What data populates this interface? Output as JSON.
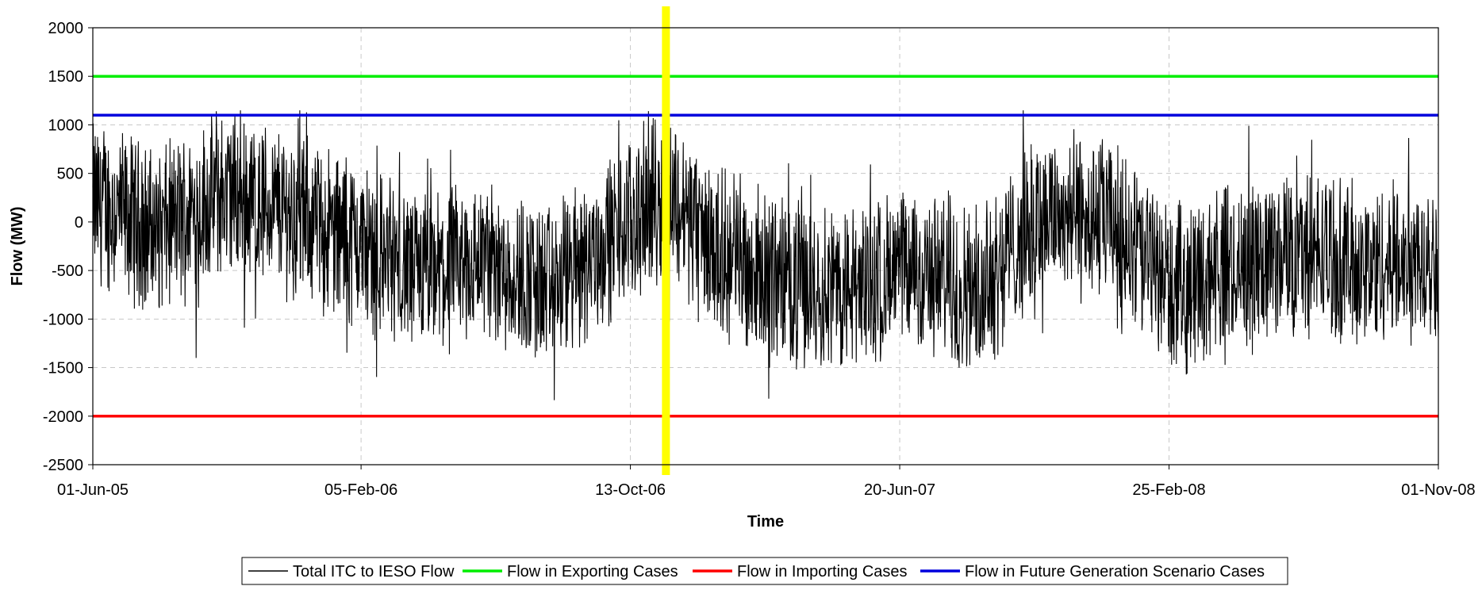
{
  "chart_data": {
    "type": "line",
    "title": "",
    "xlabel": "Time",
    "ylabel": "Flow (MW)",
    "ylim": [
      -2500,
      2000
    ],
    "yticks": [
      2000,
      1500,
      1000,
      500,
      0,
      -500,
      -1000,
      -1500,
      -2000,
      -2500
    ],
    "xlim": [
      "2005-06-01",
      "2008-11-01"
    ],
    "xtick_labels": [
      "01-Jun-05",
      "05-Feb-06",
      "13-Oct-06",
      "20-Jun-07",
      "25-Feb-08",
      "01-Nov-08"
    ],
    "xticks": [
      "2005-06-01",
      "2006-02-05",
      "2006-10-13",
      "2007-06-20",
      "2008-02-25",
      "2008-11-01"
    ],
    "grid": true,
    "legend_position": "bottom",
    "series": [
      {
        "name": "Total ITC to IESO Flow",
        "color": "#000000",
        "note_shape": "dense noisy hourly series",
        "x": [
          "2005-06-01",
          "2005-08-01",
          "2005-10-01",
          "2005-12-01",
          "2006-02-01",
          "2006-04-01",
          "2006-06-01",
          "2006-08-01",
          "2006-10-01",
          "2006-11-15",
          "2007-01-01",
          "2007-03-01",
          "2007-05-01",
          "2007-07-01",
          "2007-09-01",
          "2007-11-01",
          "2008-01-01",
          "2008-03-01",
          "2008-05-01",
          "2008-07-01",
          "2008-09-01",
          "2008-11-01"
        ],
        "y": [
          200,
          -100,
          300,
          100,
          -200,
          -600,
          -400,
          -700,
          -100,
          300,
          -300,
          -600,
          -700,
          -500,
          -700,
          100,
          0,
          -700,
          -400,
          -300,
          -500,
          -300
        ]
      },
      {
        "name": "Flow in Exporting Cases",
        "color": "#00ee00",
        "x": [
          "2005-06-01",
          "2008-11-01"
        ],
        "y": [
          1500,
          1500
        ]
      },
      {
        "name": "Flow in Importing Cases",
        "color": "#ff0000",
        "x": [
          "2005-06-01",
          "2008-11-01"
        ],
        "y": [
          -2000,
          -2000
        ]
      },
      {
        "name": "Flow in Future Generation Scenario Cases",
        "color": "#0000dd",
        "x": [
          "2005-06-01",
          "2008-11-01"
        ],
        "y": [
          1100,
          1100
        ]
      }
    ],
    "annotations": [
      {
        "type": "vertical-marker",
        "x": "2006-11-15",
        "color": "#ffff00"
      }
    ]
  },
  "legend": {
    "items": [
      {
        "label": "Total ITC to IESO Flow",
        "color": "#000000"
      },
      {
        "label": "Flow  in Exporting Cases",
        "color": "#00ee00"
      },
      {
        "label": "Flow  in Importing Cases",
        "color": "#ff0000"
      },
      {
        "label": "Flow  in Future Generation Scenario Cases",
        "color": "#0000dd"
      }
    ]
  }
}
